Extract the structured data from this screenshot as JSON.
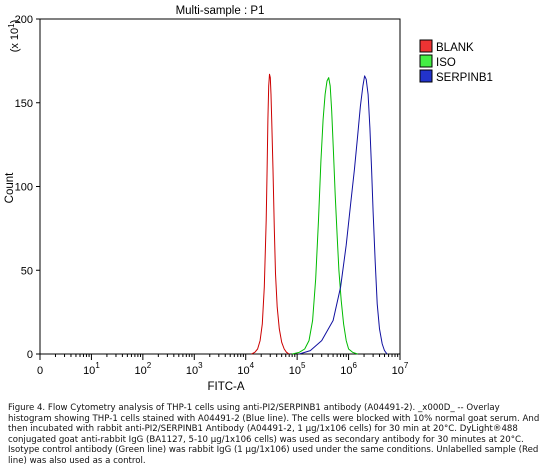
{
  "chart_data": {
    "type": "line",
    "title": "Multi-sample : P1",
    "xlabel": "FITC-A",
    "ylabel": "Count",
    "y_multiplier_label": "(x 10^1)",
    "x_scale": "log",
    "xlim": [
      1,
      10000000
    ],
    "ylim": [
      0,
      200
    ],
    "x_ticks": [
      {
        "value": 1,
        "base": "0",
        "exp": ""
      },
      {
        "value": 10,
        "base": "10",
        "exp": "1"
      },
      {
        "value": 100,
        "base": "10",
        "exp": "2"
      },
      {
        "value": 1000,
        "base": "10",
        "exp": "3"
      },
      {
        "value": 10000,
        "base": "10",
        "exp": "4"
      },
      {
        "value": 100000,
        "base": "10",
        "exp": "5"
      },
      {
        "value": 1000000,
        "base": "10",
        "exp": "6"
      },
      {
        "value": 10000000,
        "base": "10",
        "exp": "7"
      }
    ],
    "y_ticks": [
      0,
      50,
      100,
      150,
      200
    ],
    "grid": false,
    "legend_position": "top-right",
    "series": [
      {
        "name": "BLANK",
        "color": "#cc0000",
        "legend_fill": "#ee3333",
        "points": [
          [
            13000,
            0
          ],
          [
            15000,
            1
          ],
          [
            17000,
            3
          ],
          [
            19000,
            8
          ],
          [
            21000,
            18
          ],
          [
            23000,
            40
          ],
          [
            25000,
            80
          ],
          [
            26000,
            110
          ],
          [
            27000,
            140
          ],
          [
            28000,
            160
          ],
          [
            29000,
            167
          ],
          [
            30000,
            165
          ],
          [
            31000,
            155
          ],
          [
            32000,
            140
          ],
          [
            34000,
            110
          ],
          [
            36000,
            75
          ],
          [
            38000,
            48
          ],
          [
            41000,
            28
          ],
          [
            45000,
            15
          ],
          [
            50000,
            7
          ],
          [
            56000,
            3
          ],
          [
            62000,
            1
          ],
          [
            70000,
            0
          ]
        ]
      },
      {
        "name": "ISO",
        "color": "#00bb00",
        "legend_fill": "#44ee44",
        "points": [
          [
            80000,
            0
          ],
          [
            110000,
            1
          ],
          [
            140000,
            3
          ],
          [
            170000,
            8
          ],
          [
            200000,
            20
          ],
          [
            230000,
            45
          ],
          [
            260000,
            80
          ],
          [
            290000,
            115
          ],
          [
            320000,
            140
          ],
          [
            350000,
            155
          ],
          [
            380000,
            163
          ],
          [
            410000,
            165
          ],
          [
            440000,
            160
          ],
          [
            470000,
            145
          ],
          [
            510000,
            120
          ],
          [
            550000,
            95
          ],
          [
            600000,
            70
          ],
          [
            650000,
            50
          ],
          [
            720000,
            32
          ],
          [
            800000,
            18
          ],
          [
            900000,
            8
          ],
          [
            1000000,
            3
          ],
          [
            1200000,
            1
          ],
          [
            1500000,
            0
          ]
        ]
      },
      {
        "name": "SERPINB1",
        "color": "#1010a0",
        "legend_fill": "#2233cc",
        "points": [
          [
            110000,
            0
          ],
          [
            180000,
            2
          ],
          [
            300000,
            8
          ],
          [
            500000,
            20
          ],
          [
            700000,
            40
          ],
          [
            900000,
            65
          ],
          [
            1100000,
            90
          ],
          [
            1300000,
            110
          ],
          [
            1500000,
            130
          ],
          [
            1700000,
            148
          ],
          [
            1900000,
            160
          ],
          [
            2050000,
            166
          ],
          [
            2200000,
            164
          ],
          [
            2400000,
            155
          ],
          [
            2600000,
            135
          ],
          [
            2800000,
            110
          ],
          [
            3000000,
            85
          ],
          [
            3300000,
            55
          ],
          [
            3600000,
            30
          ],
          [
            4000000,
            15
          ],
          [
            4500000,
            6
          ],
          [
            5000000,
            2
          ],
          [
            5600000,
            0
          ]
        ]
      }
    ]
  },
  "caption": "Figure 4. Flow Cytometry analysis of THP-1 cells using anti-PI2/SERPINB1 antibody (A04491-2). _x000D_ -- Overlay histogram showing THP-1 cells stained with A04491-2 (Blue line). The cells were blocked with 10% normal goat serum. And then incubated with rabbit anti-PI2/SERPINB1 Antibody (A04491-2, 1 μg/1x106 cells) for 30 min at 20°C. DyLight®488 conjugated goat anti-rabbit IgG (BA1127, 5-10 μg/1x106 cells) was used as secondary antibody for 30 minutes at 20°C. Isotype control antibody (Green line) was rabbit IgG (1 μg/1x106) used under the same conditions. Unlabelled sample (Red line) was also used as a control."
}
